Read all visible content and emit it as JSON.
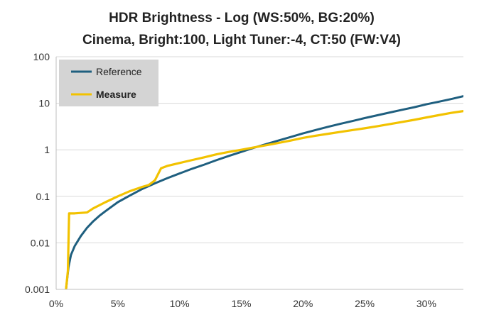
{
  "chart_data": {
    "type": "line",
    "title": "HDR Brightness - Log (WS:50%, BG:20%)",
    "subtitle": "Cinema, Bright:100, Light Tuner:-4, CT:50 (FW:V4)",
    "xlabel": "",
    "ylabel": "",
    "x_scale": "linear",
    "y_scale": "log",
    "xlim": [
      0,
      0.33
    ],
    "ylim": [
      0.001,
      100
    ],
    "x_ticks": [
      0,
      0.05,
      0.1,
      0.15,
      0.2,
      0.25,
      0.3
    ],
    "x_tick_labels": [
      "0%",
      "5%",
      "10%",
      "15%",
      "20%",
      "25%",
      "30%"
    ],
    "y_ticks": [
      0.001,
      0.01,
      0.1,
      1,
      10,
      100
    ],
    "y_tick_labels": [
      "0.001",
      "0.01",
      "0.1",
      "1",
      "10",
      "100"
    ],
    "grid": "horizontal",
    "legend_position": "top-left",
    "series": [
      {
        "name": "Reference",
        "color": "#1f5f7f",
        "bold": false,
        "points": [
          [
            0.008,
            0.001
          ],
          [
            0.01,
            0.003
          ],
          [
            0.012,
            0.0055
          ],
          [
            0.015,
            0.0085
          ],
          [
            0.02,
            0.014
          ],
          [
            0.025,
            0.021
          ],
          [
            0.03,
            0.029
          ],
          [
            0.035,
            0.038
          ],
          [
            0.04,
            0.048
          ],
          [
            0.05,
            0.075
          ],
          [
            0.06,
            0.105
          ],
          [
            0.07,
            0.145
          ],
          [
            0.08,
            0.19
          ],
          [
            0.09,
            0.245
          ],
          [
            0.1,
            0.31
          ],
          [
            0.11,
            0.39
          ],
          [
            0.12,
            0.48
          ],
          [
            0.13,
            0.6
          ],
          [
            0.14,
            0.74
          ],
          [
            0.15,
            0.9
          ],
          [
            0.16,
            1.1
          ],
          [
            0.17,
            1.32
          ],
          [
            0.18,
            1.58
          ],
          [
            0.19,
            1.88
          ],
          [
            0.2,
            2.25
          ],
          [
            0.21,
            2.65
          ],
          [
            0.22,
            3.1
          ],
          [
            0.23,
            3.6
          ],
          [
            0.24,
            4.15
          ],
          [
            0.25,
            4.8
          ],
          [
            0.26,
            5.5
          ],
          [
            0.27,
            6.3
          ],
          [
            0.28,
            7.2
          ],
          [
            0.29,
            8.2
          ],
          [
            0.3,
            9.5
          ],
          [
            0.31,
            10.8
          ],
          [
            0.32,
            12.3
          ],
          [
            0.33,
            14.2
          ]
        ]
      },
      {
        "name": "Measure",
        "color": "#f2c200",
        "bold": true,
        "points": [
          [
            0.008,
            0.001
          ],
          [
            0.0095,
            0.0025
          ],
          [
            0.0105,
            0.043
          ],
          [
            0.015,
            0.043
          ],
          [
            0.02,
            0.044
          ],
          [
            0.025,
            0.045
          ],
          [
            0.03,
            0.055
          ],
          [
            0.04,
            0.075
          ],
          [
            0.05,
            0.1
          ],
          [
            0.06,
            0.13
          ],
          [
            0.07,
            0.16
          ],
          [
            0.075,
            0.175
          ],
          [
            0.08,
            0.22
          ],
          [
            0.085,
            0.4
          ],
          [
            0.09,
            0.45
          ],
          [
            0.1,
            0.52
          ],
          [
            0.11,
            0.6
          ],
          [
            0.12,
            0.69
          ],
          [
            0.13,
            0.8
          ],
          [
            0.14,
            0.9
          ],
          [
            0.15,
            1.0
          ],
          [
            0.16,
            1.12
          ],
          [
            0.17,
            1.25
          ],
          [
            0.18,
            1.4
          ],
          [
            0.19,
            1.58
          ],
          [
            0.2,
            1.8
          ],
          [
            0.21,
            2.0
          ],
          [
            0.22,
            2.2
          ],
          [
            0.23,
            2.42
          ],
          [
            0.24,
            2.65
          ],
          [
            0.25,
            2.9
          ],
          [
            0.26,
            3.2
          ],
          [
            0.27,
            3.55
          ],
          [
            0.28,
            3.95
          ],
          [
            0.29,
            4.4
          ],
          [
            0.3,
            4.95
          ],
          [
            0.31,
            5.55
          ],
          [
            0.32,
            6.2
          ],
          [
            0.33,
            6.8
          ]
        ]
      }
    ]
  }
}
